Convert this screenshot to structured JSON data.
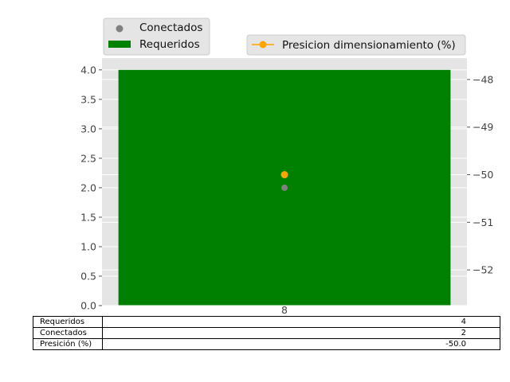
{
  "chart_data": {
    "type": "bar",
    "categories": [
      "8"
    ],
    "series": [
      {
        "name": "Requeridos",
        "kind": "bar",
        "axis": "left",
        "values": [
          4
        ],
        "color": "#008000"
      },
      {
        "name": "Conectados",
        "kind": "scatter",
        "axis": "left",
        "values": [
          2
        ],
        "color": "#808080"
      },
      {
        "name": "Presicion dimensionamiento (%)",
        "kind": "line",
        "axis": "right",
        "values": [
          -50.0
        ],
        "color": "#FFA500"
      }
    ],
    "ylim": [
      0,
      4.2
    ],
    "y_ticks": [
      "0.0",
      "0.5",
      "1.0",
      "1.5",
      "2.0",
      "2.5",
      "3.0",
      "3.5",
      "4.0"
    ],
    "y2lim": [
      -52.75,
      -47.55
    ],
    "y2_ticks": [
      "−48",
      "−49",
      "−50",
      "−51",
      "−52"
    ],
    "grid": true,
    "background": "#E5E5E5",
    "legend_left": [
      "Conectados",
      "Requeridos"
    ],
    "legend_right": [
      "Presicion dimensionamiento (%)"
    ],
    "table": {
      "column_label": "8",
      "rows": [
        {
          "label": "Requeridos",
          "value": "4"
        },
        {
          "label": "Conectados",
          "value": "2"
        },
        {
          "label": "Presición (%)",
          "value": "-50.0"
        }
      ]
    }
  }
}
